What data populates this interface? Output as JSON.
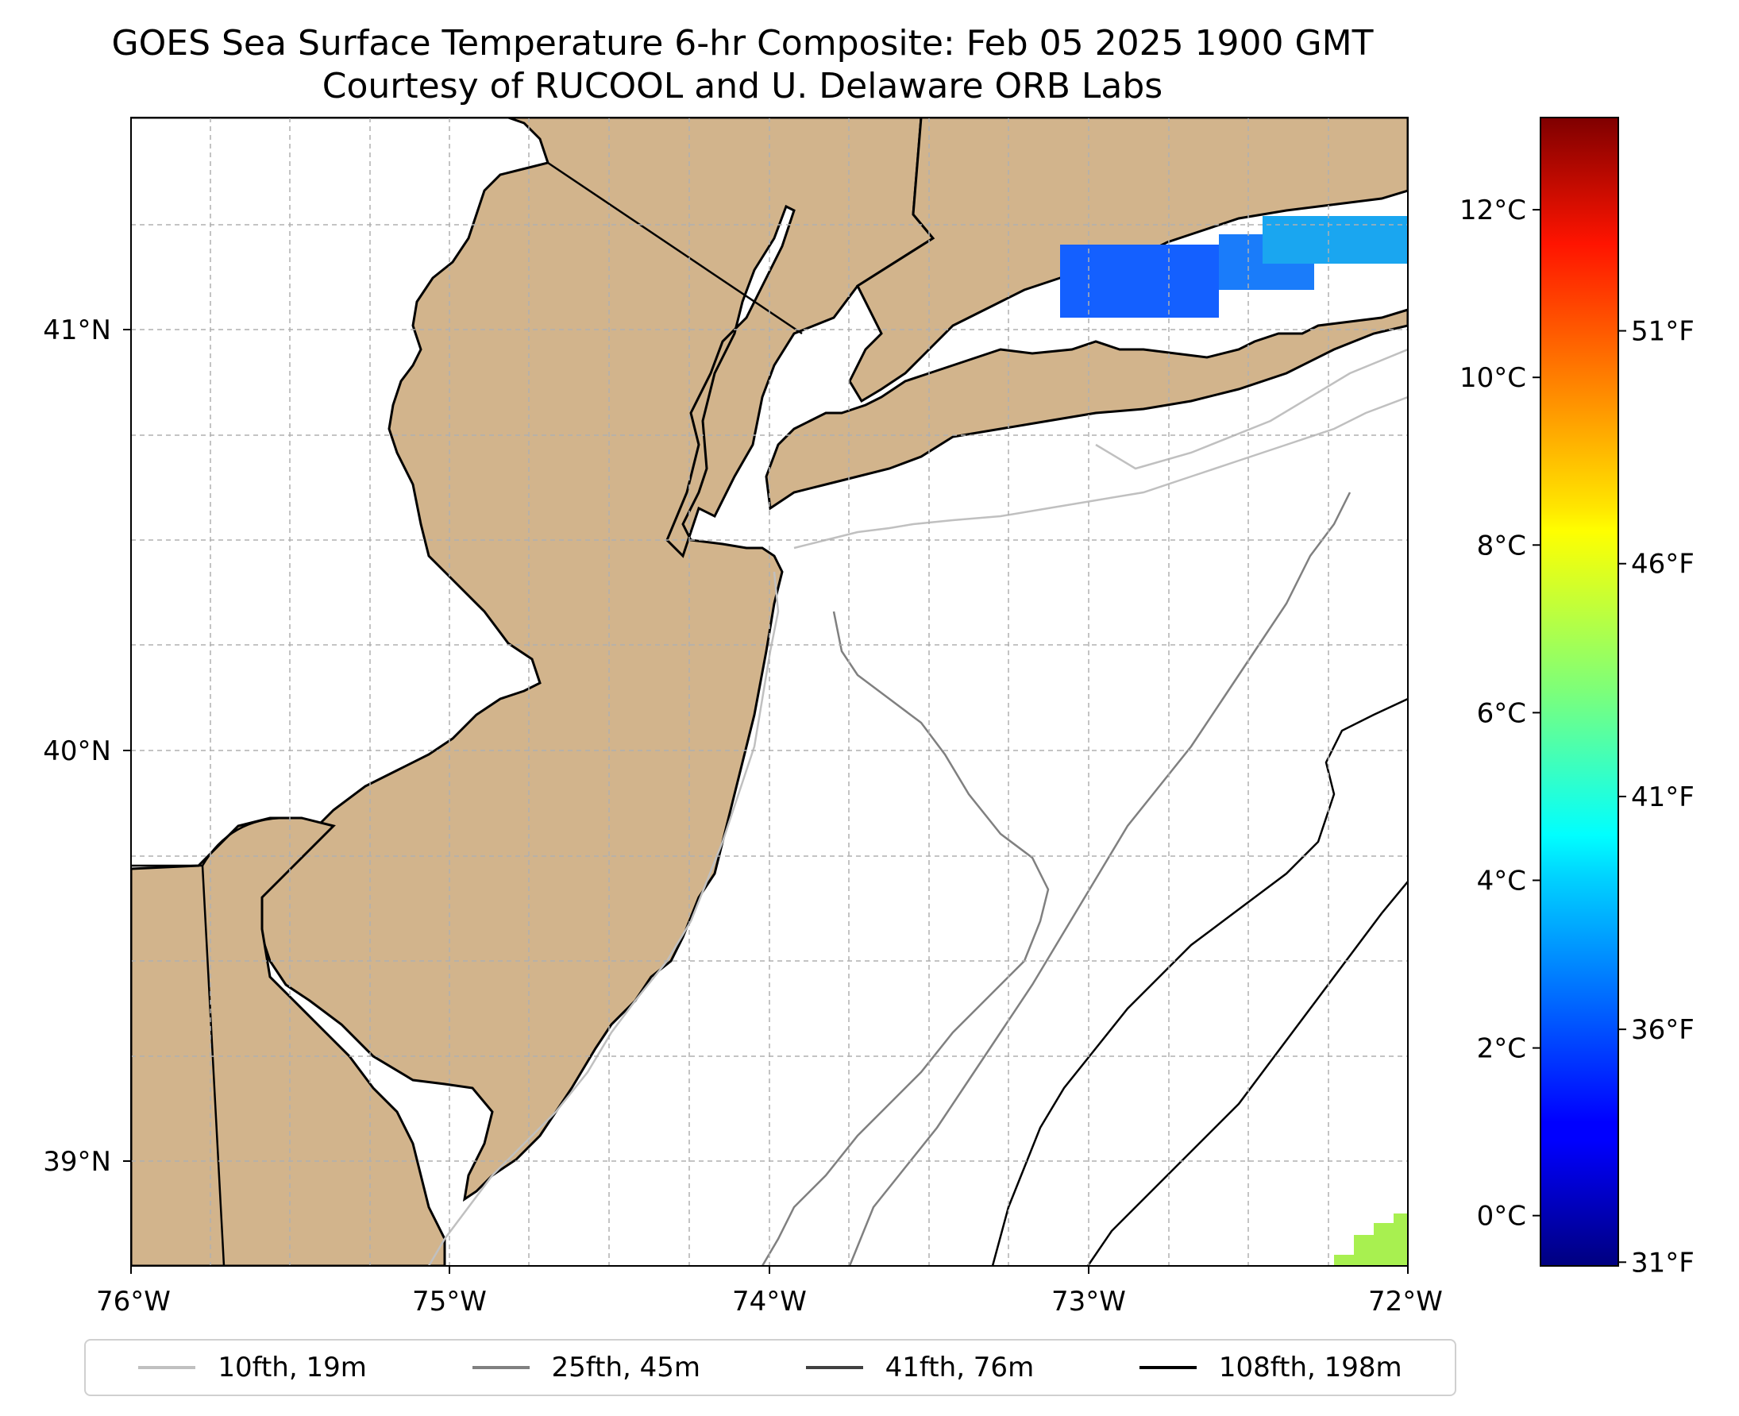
{
  "title": {
    "line1": "GOES Sea Surface Temperature 6-hr Composite: Feb 05 2025 1900 GMT",
    "line2": "Courtesy of RUCOOL and U. Delaware ORB Labs"
  },
  "map": {
    "lon_range": [
      -76,
      -72
    ],
    "lat_range": [
      38.75,
      41.52
    ],
    "lon_ticks": [
      "76°W",
      "75°W",
      "74°W",
      "73°W",
      "72°W"
    ],
    "lat_ticks": [
      "41°N",
      "40°N",
      "39°N"
    ],
    "land_color": "#d2b48c",
    "ocean_color": "#ffffff",
    "gridlines": true,
    "sst_patches": [
      {
        "region": "Long Island Sound (west)",
        "temp_c": 2.3,
        "color": "#1460ff"
      },
      {
        "region": "Long Island Sound (east)",
        "temp_c": 3.9,
        "color": "#1aa6f0"
      },
      {
        "region": "Offshore southeast corner",
        "temp_c": 6.5,
        "color": "#a8f050"
      }
    ]
  },
  "colorbar": {
    "celsius_ticks": [
      "12°C",
      "10°C",
      "8°C",
      "6°C",
      "4°C",
      "2°C",
      "0°C"
    ],
    "celsius_values": [
      12,
      10,
      8,
      6,
      4,
      2,
      0
    ],
    "fahrenheit_ticks": [
      "51°F",
      "46°F",
      "41°F",
      "36°F",
      "31°F"
    ],
    "fahrenheit_values": [
      51,
      46,
      41,
      36,
      31
    ],
    "range_c": [
      -0.6,
      13.1
    ],
    "colormap": "jet"
  },
  "legend": {
    "items": [
      {
        "label": "10fth, 19m",
        "color": "#c0c0c0"
      },
      {
        "label": "25fth, 45m",
        "color": "#808080"
      },
      {
        "label": "41fth, 76m",
        "color": "#404040"
      },
      {
        "label": "108fth, 198m",
        "color": "#000000"
      }
    ]
  }
}
